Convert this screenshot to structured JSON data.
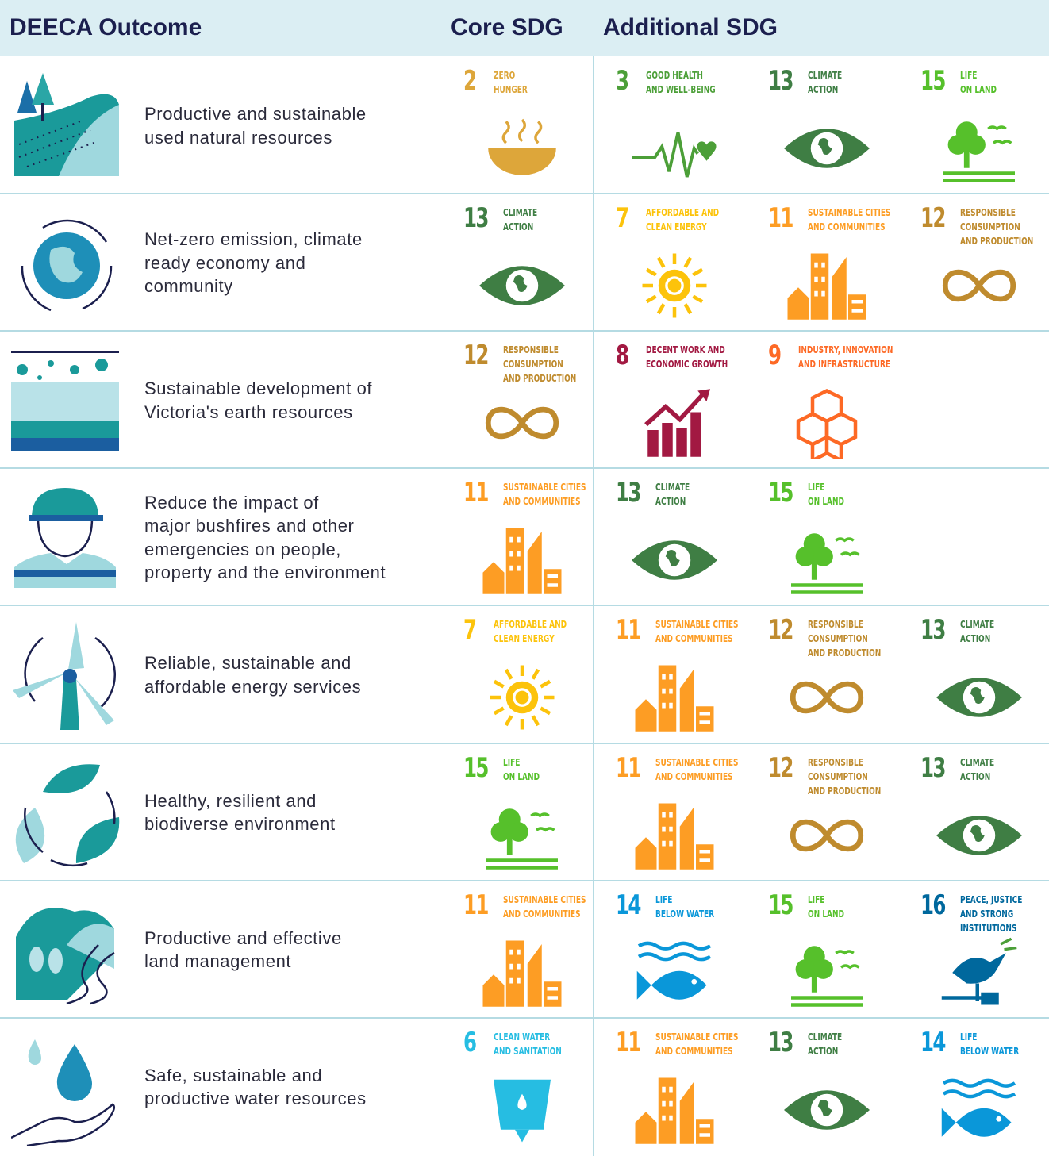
{
  "header": [
    "DEECA Outcome",
    "Core SDG",
    "Additional SDG"
  ],
  "sdgs": {
    "2": {
      "label": [
        "ZERO",
        "HUNGER"
      ],
      "color": "#DDA63A"
    },
    "3": {
      "label": [
        "GOOD HEALTH",
        "AND WELL-BEING"
      ],
      "color": "#4C9F38"
    },
    "6": {
      "label": [
        "CLEAN WATER",
        "AND SANITATION"
      ],
      "color": "#26BDE2"
    },
    "7": {
      "label": [
        "AFFORDABLE AND",
        "CLEAN ENERGY"
      ],
      "color": "#FCC30B"
    },
    "8": {
      "label": [
        "DECENT WORK AND",
        "ECONOMIC GROWTH"
      ],
      "color": "#A21942"
    },
    "9": {
      "label": [
        "INDUSTRY, INNOVATION",
        "AND INFRASTRUCTURE"
      ],
      "color": "#FD6925"
    },
    "11": {
      "label": [
        "SUSTAINABLE CITIES",
        "AND COMMUNITIES"
      ],
      "color": "#FD9D24"
    },
    "12": {
      "label": [
        "RESPONSIBLE",
        "CONSUMPTION",
        "AND PRODUCTION"
      ],
      "color": "#BF8B2E"
    },
    "13": {
      "label": [
        "CLIMATE",
        "ACTION"
      ],
      "color": "#3F7E44"
    },
    "14": {
      "label": [
        "LIFE",
        "BELOW WATER"
      ],
      "color": "#0A97D9"
    },
    "15": {
      "label": [
        "LIFE",
        "ON LAND"
      ],
      "color": "#56C02B"
    },
    "16": {
      "label": [
        "PEACE, JUSTICE",
        "AND STRONG",
        "INSTITUTIONS"
      ],
      "color": "#00689D"
    }
  },
  "rows": [
    {
      "outcome": [
        "Productive and sustainable",
        "used natural resources"
      ],
      "core": 2,
      "additional": [
        3,
        13,
        15
      ]
    },
    {
      "outcome": [
        "Net-zero emission, climate",
        "ready economy and",
        "community"
      ],
      "core": 13,
      "additional": [
        7,
        11,
        12
      ]
    },
    {
      "outcome": [
        "Sustainable development of",
        "Victoria's earth resources"
      ],
      "core": 12,
      "additional": [
        8,
        9
      ]
    },
    {
      "outcome": [
        "Reduce the impact of",
        "major bushfires and other",
        "emergencies on people,",
        "property and the environment"
      ],
      "core": 11,
      "additional": [
        13,
        15
      ]
    },
    {
      "outcome": [
        "Reliable, sustainable and",
        "affordable energy services"
      ],
      "core": 7,
      "additional": [
        11,
        12,
        13
      ]
    },
    {
      "outcome": [
        "Healthy, resilient and",
        "biodiverse environment"
      ],
      "core": 15,
      "additional": [
        11,
        12,
        13
      ]
    },
    {
      "outcome": [
        "Productive and effective",
        "land management"
      ],
      "core": 11,
      "additional": [
        14,
        15,
        16
      ]
    },
    {
      "outcome": [
        "Safe, sustainable and",
        "productive water resources"
      ],
      "core": 6,
      "additional": [
        11,
        13,
        14
      ]
    }
  ]
}
